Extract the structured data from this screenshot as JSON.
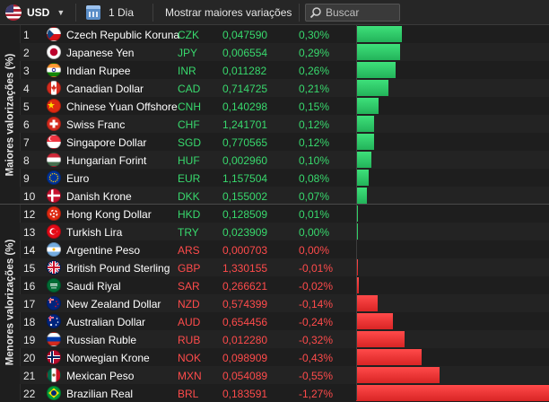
{
  "toolbar": {
    "currency": "USD",
    "period": "1 Dia",
    "biggest_moves_label": "Mostrar maiores variações",
    "search_placeholder": "Buscar"
  },
  "groups": {
    "gainers_label": "Maiores valorizações (%)",
    "losers_label": "Menores valorizações (%)"
  },
  "max_abs_change_pct": 1.27,
  "rows": [
    {
      "rank": "1",
      "name": "Czech Republic Koruna",
      "code": "CZK",
      "price": "0,047590",
      "change": "0,30%",
      "change_value": 0.3,
      "trend": "up",
      "flag": "cz"
    },
    {
      "rank": "2",
      "name": "Japanese Yen",
      "code": "JPY",
      "price": "0,006554",
      "change": "0,29%",
      "change_value": 0.29,
      "trend": "up",
      "flag": "jp"
    },
    {
      "rank": "3",
      "name": "Indian Rupee",
      "code": "INR",
      "price": "0,011282",
      "change": "0,26%",
      "change_value": 0.26,
      "trend": "up",
      "flag": "in"
    },
    {
      "rank": "4",
      "name": "Canadian Dollar",
      "code": "CAD",
      "price": "0,714725",
      "change": "0,21%",
      "change_value": 0.21,
      "trend": "up",
      "flag": "ca"
    },
    {
      "rank": "5",
      "name": "Chinese Yuan Offshore",
      "code": "CNH",
      "price": "0,140298",
      "change": "0,15%",
      "change_value": 0.15,
      "trend": "up",
      "flag": "cn"
    },
    {
      "rank": "6",
      "name": "Swiss Franc",
      "code": "CHF",
      "price": "1,241701",
      "change": "0,12%",
      "change_value": 0.12,
      "trend": "up",
      "flag": "ch"
    },
    {
      "rank": "7",
      "name": "Singapore Dollar",
      "code": "SGD",
      "price": "0,770565",
      "change": "0,12%",
      "change_value": 0.12,
      "trend": "up",
      "flag": "sg"
    },
    {
      "rank": "8",
      "name": "Hungarian Forint",
      "code": "HUF",
      "price": "0,002960",
      "change": "0,10%",
      "change_value": 0.1,
      "trend": "up",
      "flag": "hu"
    },
    {
      "rank": "9",
      "name": "Euro",
      "code": "EUR",
      "price": "1,157504",
      "change": "0,08%",
      "change_value": 0.08,
      "trend": "up",
      "flag": "eu"
    },
    {
      "rank": "10",
      "name": "Danish Krone",
      "code": "DKK",
      "price": "0,155002",
      "change": "0,07%",
      "change_value": 0.07,
      "trend": "up",
      "flag": "dk"
    },
    {
      "rank": "12",
      "name": "Hong Kong Dollar",
      "code": "HKD",
      "price": "0,128509",
      "change": "0,01%",
      "change_value": 0.01,
      "trend": "flat",
      "flag": "hk"
    },
    {
      "rank": "13",
      "name": "Turkish Lira",
      "code": "TRY",
      "price": "0,023909",
      "change": "0,00%",
      "change_value": 0.004,
      "trend": "flat",
      "flag": "tr"
    },
    {
      "rank": "14",
      "name": "Argentine Peso",
      "code": "ARS",
      "price": "0,000703",
      "change": "0,00%",
      "change_value": 0.0,
      "trend": "down",
      "flag": "ar"
    },
    {
      "rank": "15",
      "name": "British Pound Sterling",
      "code": "GBP",
      "price": "1,330155",
      "change": "-0,01%",
      "change_value": -0.01,
      "trend": "down",
      "flag": "gb"
    },
    {
      "rank": "16",
      "name": "Saudi Riyal",
      "code": "SAR",
      "price": "0,266621",
      "change": "-0,02%",
      "change_value": -0.02,
      "trend": "down",
      "flag": "sa"
    },
    {
      "rank": "17",
      "name": "New Zealand Dollar",
      "code": "NZD",
      "price": "0,574399",
      "change": "-0,14%",
      "change_value": -0.14,
      "trend": "down",
      "flag": "nz"
    },
    {
      "rank": "18",
      "name": "Australian Dollar",
      "code": "AUD",
      "price": "0,654456",
      "change": "-0,24%",
      "change_value": -0.24,
      "trend": "down",
      "flag": "au"
    },
    {
      "rank": "19",
      "name": "Russian Ruble",
      "code": "RUB",
      "price": "0,012280",
      "change": "-0,32%",
      "change_value": -0.32,
      "trend": "down",
      "flag": "ru"
    },
    {
      "rank": "20",
      "name": "Norwegian Krone",
      "code": "NOK",
      "price": "0,098909",
      "change": "-0,43%",
      "change_value": -0.43,
      "trend": "down",
      "flag": "no"
    },
    {
      "rank": "21",
      "name": "Mexican Peso",
      "code": "MXN",
      "price": "0,054089",
      "change": "-0,55%",
      "change_value": -0.55,
      "trend": "down",
      "flag": "mx"
    },
    {
      "rank": "22",
      "name": "Brazilian Real",
      "code": "BRL",
      "price": "0,183591",
      "change": "-1,27%",
      "change_value": -1.27,
      "trend": "down",
      "flag": "br"
    }
  ]
}
